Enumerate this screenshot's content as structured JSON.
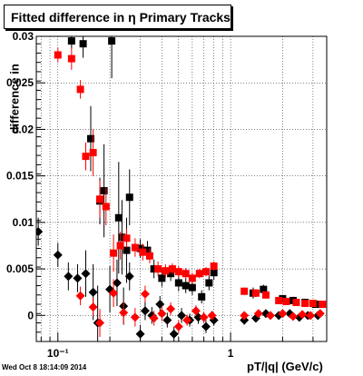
{
  "stamp": "Wed Oct  8 18:14:09 2014",
  "colors": {
    "series_black": "#000000",
    "series_red": "#ff0000",
    "grid": "#000000"
  },
  "chart_data": {
    "type": "scatter",
    "title": "Fitted difference in η  Primary Tracks",
    "xlabel": "pT/|q| (GeV/c)",
    "ylabel": "difference in",
    "x_scale": "log",
    "xlim": [
      0.075,
      3.6
    ],
    "ylim": [
      -0.0028,
      0.03
    ],
    "grid": true,
    "x_tick_labels": [
      {
        "x": 0.1,
        "label": "10⁻¹"
      },
      {
        "x": 1,
        "label": "1"
      }
    ],
    "y_tick_labels": [
      {
        "y": 0,
        "label": "0"
      },
      {
        "y": 0.005,
        "label": "0.005"
      },
      {
        "y": 0.01,
        "label": "0.01"
      },
      {
        "y": 0.015,
        "label": "0.015"
      },
      {
        "y": 0.02,
        "label": "0.02"
      },
      {
        "y": 0.025,
        "label": "0.025"
      },
      {
        "y": 0.03,
        "label": "0.03"
      }
    ],
    "series": [
      {
        "marker": "square",
        "color": "#000000",
        "points": [
          {
            "x": 0.12,
            "y": 0.0295,
            "err": 0.0008
          },
          {
            "x": 0.14,
            "y": 0.0292,
            "err": 0.0015
          },
          {
            "x": 0.155,
            "y": 0.019,
            "err": 0.0035
          },
          {
            "x": 0.175,
            "y": 0.0123,
            "err": 0.0025
          },
          {
            "x": 0.185,
            "y": 0.0134,
            "err": 0.005
          },
          {
            "x": 0.205,
            "y": 0.0295,
            "err": 0.004
          },
          {
            "x": 0.225,
            "y": 0.0105,
            "err": 0.006
          },
          {
            "x": 0.235,
            "y": 0.0084,
            "err": 0.004
          },
          {
            "x": 0.25,
            "y": 0.007,
            "err": 0.0035
          },
          {
            "x": 0.26,
            "y": 0.0127,
            "err": 0.003
          },
          {
            "x": 0.3,
            "y": 0.0072,
            "err": 0.001
          },
          {
            "x": 0.33,
            "y": 0.007,
            "err": 0.001
          },
          {
            "x": 0.36,
            "y": 0.005,
            "err": 0.001
          },
          {
            "x": 0.4,
            "y": 0.004,
            "err": 0.0009
          },
          {
            "x": 0.45,
            "y": 0.0045,
            "err": 0.0008
          },
          {
            "x": 0.5,
            "y": 0.0035,
            "err": 0.0009
          },
          {
            "x": 0.55,
            "y": 0.0032,
            "err": 0.0008
          },
          {
            "x": 0.6,
            "y": 0.003,
            "err": 0.0008
          },
          {
            "x": 0.68,
            "y": 0.002,
            "err": 0.0007
          },
          {
            "x": 0.75,
            "y": 0.0035,
            "err": 0.0008
          },
          {
            "x": 0.8,
            "y": 0.0046,
            "err": 0.0008
          },
          {
            "x": 1.35,
            "y": 0.0024,
            "err": 0.0006
          },
          {
            "x": 1.55,
            "y": 0.0028,
            "err": 0.0005
          },
          {
            "x": 2.0,
            "y": 0.0018,
            "err": 0.0004
          },
          {
            "x": 2.3,
            "y": 0.0016,
            "err": 0.0004
          },
          {
            "x": 2.7,
            "y": 0.0014,
            "err": 0.0004
          },
          {
            "x": 3.1,
            "y": 0.0012,
            "err": 0.0004
          }
        ]
      },
      {
        "marker": "square",
        "color": "#ff0000",
        "points": [
          {
            "x": 0.1,
            "y": 0.028,
            "err": 0.0008
          },
          {
            "x": 0.12,
            "y": 0.0276,
            "err": 0.0012
          },
          {
            "x": 0.135,
            "y": 0.0243,
            "err": 0.001
          },
          {
            "x": 0.145,
            "y": 0.0171,
            "err": 0.0015
          },
          {
            "x": 0.16,
            "y": 0.0175,
            "err": 0.0025
          },
          {
            "x": 0.175,
            "y": 0.0125,
            "err": 0.002
          },
          {
            "x": 0.19,
            "y": 0.0117,
            "err": 0.002
          },
          {
            "x": 0.21,
            "y": 0.0067,
            "err": 0.002
          },
          {
            "x": 0.23,
            "y": 0.0075,
            "err": 0.0015
          },
          {
            "x": 0.25,
            "y": 0.0083,
            "err": 0.001
          },
          {
            "x": 0.28,
            "y": 0.0073,
            "err": 0.001
          },
          {
            "x": 0.31,
            "y": 0.0068,
            "err": 0.0009
          },
          {
            "x": 0.34,
            "y": 0.0064,
            "err": 0.0008
          },
          {
            "x": 0.38,
            "y": 0.005,
            "err": 0.0008
          },
          {
            "x": 0.42,
            "y": 0.0048,
            "err": 0.0007
          },
          {
            "x": 0.46,
            "y": 0.005,
            "err": 0.0006
          },
          {
            "x": 0.5,
            "y": 0.0047,
            "err": 0.0006
          },
          {
            "x": 0.55,
            "y": 0.0045,
            "err": 0.0006
          },
          {
            "x": 0.6,
            "y": 0.004,
            "err": 0.0006
          },
          {
            "x": 0.66,
            "y": 0.0045,
            "err": 0.0005
          },
          {
            "x": 0.72,
            "y": 0.0047,
            "err": 0.0005
          },
          {
            "x": 0.8,
            "y": 0.0053,
            "err": 0.0005
          },
          {
            "x": 1.2,
            "y": 0.0026,
            "err": 0.0004
          },
          {
            "x": 1.4,
            "y": 0.0024,
            "err": 0.0004
          },
          {
            "x": 1.6,
            "y": 0.0022,
            "err": 0.0003
          },
          {
            "x": 1.9,
            "y": 0.0016,
            "err": 0.0003
          },
          {
            "x": 2.1,
            "y": 0.0015,
            "err": 0.0003
          },
          {
            "x": 2.4,
            "y": 0.0014,
            "err": 0.0003
          },
          {
            "x": 2.7,
            "y": 0.0013,
            "err": 0.0003
          },
          {
            "x": 3.0,
            "y": 0.0013,
            "err": 0.0003
          },
          {
            "x": 3.4,
            "y": 0.0012,
            "err": 0.0003
          }
        ]
      },
      {
        "marker": "diamond",
        "color": "#000000",
        "points": [
          {
            "x": 0.077,
            "y": 0.009,
            "err": 0.0015
          },
          {
            "x": 0.1,
            "y": 0.0065,
            "err": 0.0013
          },
          {
            "x": 0.115,
            "y": 0.0042,
            "err": 0.0015
          },
          {
            "x": 0.13,
            "y": 0.004,
            "err": 0.0015
          },
          {
            "x": 0.145,
            "y": 0.0045,
            "err": 0.0025
          },
          {
            "x": 0.16,
            "y": 0.0025,
            "err": 0.003
          },
          {
            "x": 0.17,
            "y": -0.0008,
            "err": 0.004
          },
          {
            "x": 0.2,
            "y": 0.0028,
            "err": 0.0025
          },
          {
            "x": 0.22,
            "y": 0.0035,
            "err": 0.0025
          },
          {
            "x": 0.24,
            "y": 0.001,
            "err": 0.002
          },
          {
            "x": 0.26,
            "y": 0.0042,
            "err": 0.0015
          },
          {
            "x": 0.3,
            "y": -0.002,
            "err": 0.001
          },
          {
            "x": 0.32,
            "y": 0.0005,
            "err": 0.001
          },
          {
            "x": 0.35,
            "y": 0.0,
            "err": 0.0009
          },
          {
            "x": 0.39,
            "y": 0.0012,
            "err": 0.0009
          },
          {
            "x": 0.43,
            "y": -0.0005,
            "err": 0.0008
          },
          {
            "x": 0.47,
            "y": -0.002,
            "err": 0.0008
          },
          {
            "x": 0.52,
            "y": 0.0,
            "err": 0.0008
          },
          {
            "x": 0.58,
            "y": -0.0005,
            "err": 0.0007
          },
          {
            "x": 0.65,
            "y": -0.0002,
            "err": 0.0007
          },
          {
            "x": 0.72,
            "y": -0.0012,
            "err": 0.0007
          },
          {
            "x": 0.8,
            "y": -0.0005,
            "err": 0.0006
          },
          {
            "x": 1.2,
            "y": -0.0005,
            "err": 0.0005
          },
          {
            "x": 1.4,
            "y": -0.0003,
            "err": 0.0004
          },
          {
            "x": 1.6,
            "y": 0.0002,
            "err": 0.0004
          },
          {
            "x": 1.9,
            "y": 0.0,
            "err": 0.0003
          },
          {
            "x": 2.2,
            "y": 0.0002,
            "err": 0.0003
          },
          {
            "x": 2.5,
            "y": -0.0002,
            "err": 0.0003
          },
          {
            "x": 2.8,
            "y": 0.0,
            "err": 0.0003
          },
          {
            "x": 3.2,
            "y": 0.0,
            "err": 0.0003
          }
        ]
      },
      {
        "marker": "diamond",
        "color": "#ff0000",
        "points": [
          {
            "x": 0.135,
            "y": 0.0021,
            "err": 0.001
          },
          {
            "x": 0.16,
            "y": 0.0009,
            "err": 0.001
          },
          {
            "x": 0.175,
            "y": -0.0008,
            "err": 0.0015
          },
          {
            "x": 0.21,
            "y": 0.0024,
            "err": 0.0015
          },
          {
            "x": 0.24,
            "y": 0.0003,
            "err": 0.0012
          },
          {
            "x": 0.28,
            "y": -0.0002,
            "err": 0.001
          },
          {
            "x": 0.32,
            "y": 0.0023,
            "err": 0.0009
          },
          {
            "x": 0.36,
            "y": -0.0003,
            "err": 0.0008
          },
          {
            "x": 0.4,
            "y": 0.0002,
            "err": 0.0008
          },
          {
            "x": 0.45,
            "y": 0.0007,
            "err": 0.0007
          },
          {
            "x": 0.5,
            "y": -0.0012,
            "err": 0.0007
          },
          {
            "x": 0.56,
            "y": -0.0005,
            "err": 0.0006
          },
          {
            "x": 0.63,
            "y": 0.0005,
            "err": 0.0006
          },
          {
            "x": 0.7,
            "y": -0.0002,
            "err": 0.0006
          },
          {
            "x": 0.78,
            "y": 0.0,
            "err": 0.0005
          },
          {
            "x": 1.2,
            "y": 0.0,
            "err": 0.0004
          },
          {
            "x": 1.45,
            "y": 0.0002,
            "err": 0.0004
          },
          {
            "x": 1.7,
            "y": 0.0,
            "err": 0.0003
          },
          {
            "x": 2.0,
            "y": 0.0002,
            "err": 0.0003
          },
          {
            "x": 2.3,
            "y": -0.0001,
            "err": 0.0003
          },
          {
            "x": 2.6,
            "y": 0.0001,
            "err": 0.0003
          },
          {
            "x": 2.9,
            "y": 0.0,
            "err": 0.0003
          },
          {
            "x": 3.3,
            "y": 0.0002,
            "err": 0.0003
          }
        ]
      }
    ]
  }
}
